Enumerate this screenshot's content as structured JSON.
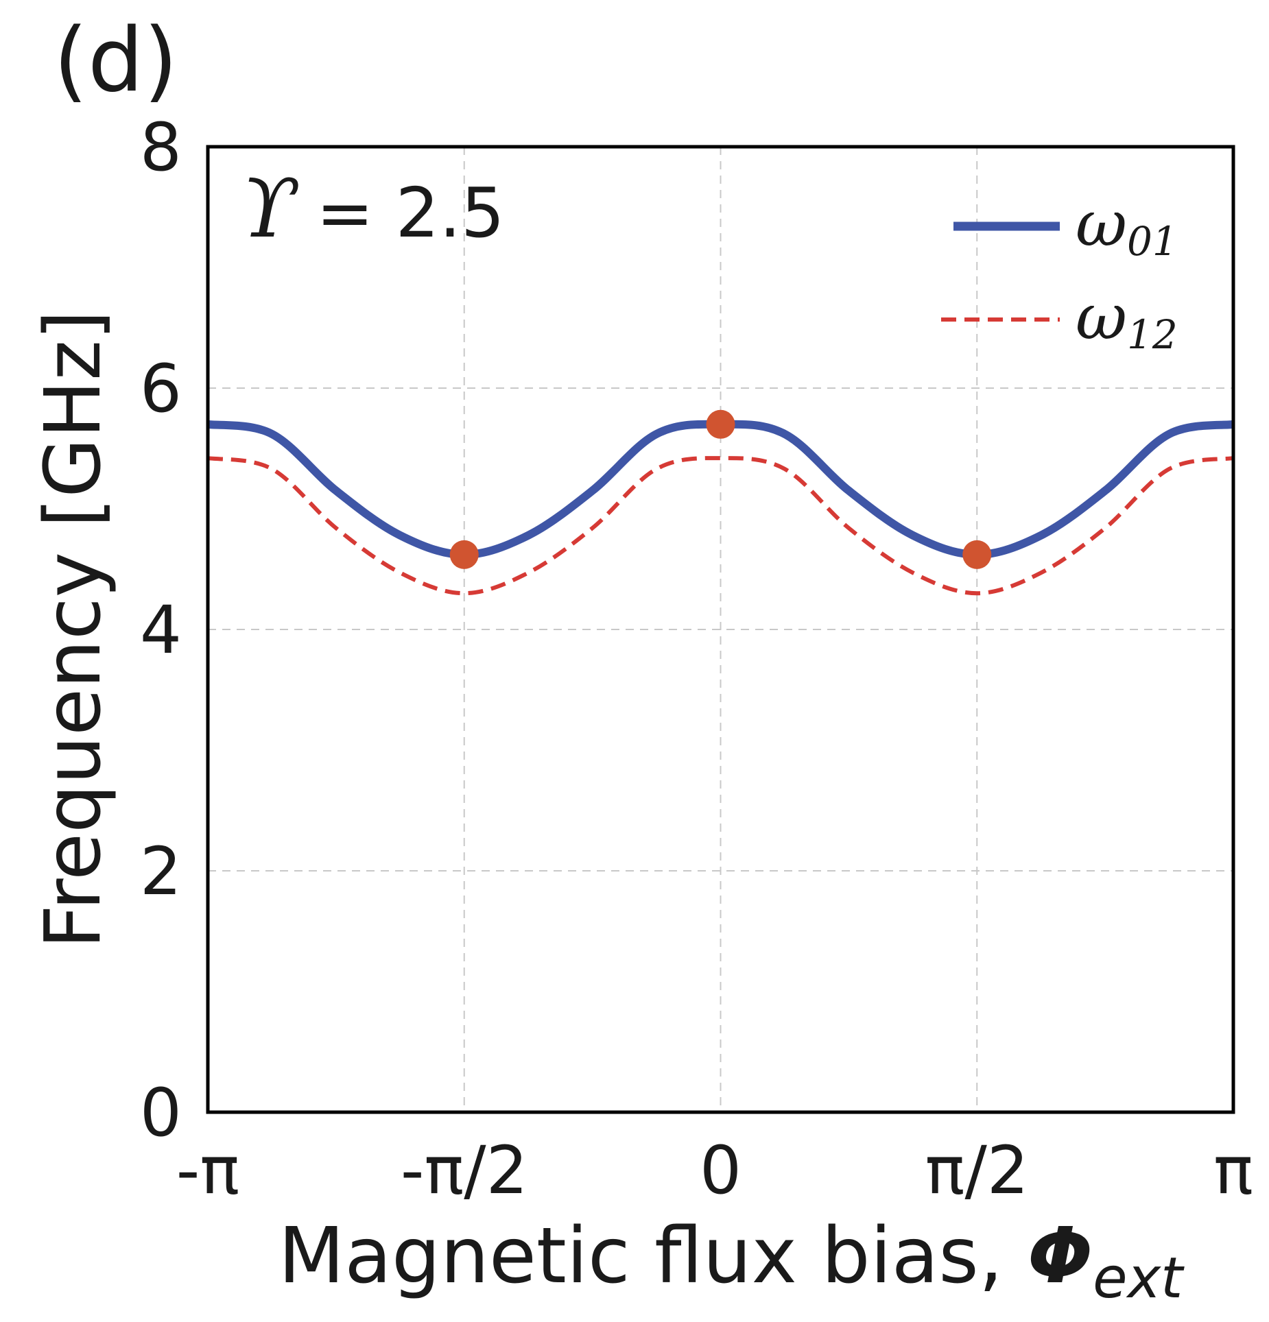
{
  "panel_label": "(d)",
  "annotation": {
    "symbol": "ϒ",
    "text": "= 2.5"
  },
  "chart_data": {
    "type": "line",
    "xlabel": "Magnetic flux bias, ",
    "xlabel_symbol": "Φ",
    "xlabel_subscript": "ext",
    "ylabel": "Frequency [GHz]",
    "xlim": [
      -3.14159,
      3.14159
    ],
    "ylim": [
      0,
      8
    ],
    "x_ticks": [
      {
        "value": -3.14159,
        "label": "-π"
      },
      {
        "value": -1.5708,
        "label": "-π/2"
      },
      {
        "value": 0,
        "label": "0"
      },
      {
        "value": 1.5708,
        "label": "π/2"
      },
      {
        "value": 3.14159,
        "label": "π"
      }
    ],
    "y_ticks": [
      {
        "value": 0,
        "label": "0"
      },
      {
        "value": 2,
        "label": "2"
      },
      {
        "value": 4,
        "label": "4"
      },
      {
        "value": 6,
        "label": "6"
      },
      {
        "value": 8,
        "label": "8"
      }
    ],
    "grid": true,
    "legend": "top-right",
    "series": [
      {
        "name_symbol": "ω",
        "name_subscript": "01",
        "style": "solid",
        "color": "#3f56a6",
        "x": [
          -3.1416,
          -2.7489,
          -2.3562,
          -1.9635,
          -1.5708,
          -1.1781,
          -0.7854,
          -0.3927,
          0,
          0.3927,
          0.7854,
          1.1781,
          1.5708,
          1.9635,
          2.3562,
          2.7489,
          3.1416
        ],
        "y": [
          5.7,
          5.62,
          5.15,
          4.78,
          4.62,
          4.78,
          5.15,
          5.62,
          5.7,
          5.62,
          5.15,
          4.78,
          4.62,
          4.78,
          5.15,
          5.62,
          5.7
        ]
      },
      {
        "name_symbol": "ω",
        "name_subscript": "12",
        "style": "dashed",
        "color": "#d63a35",
        "x": [
          -3.1416,
          -2.7489,
          -2.3562,
          -1.9635,
          -1.5708,
          -1.1781,
          -0.7854,
          -0.3927,
          0,
          0.3927,
          0.7854,
          1.1781,
          1.5708,
          1.9635,
          2.3562,
          2.7489,
          3.1416
        ],
        "y": [
          5.42,
          5.33,
          4.84,
          4.47,
          4.3,
          4.47,
          4.84,
          5.33,
          5.42,
          5.33,
          4.84,
          4.47,
          4.3,
          4.47,
          4.84,
          5.33,
          5.42
        ]
      }
    ],
    "markers": {
      "color": "#d05430",
      "points": [
        {
          "x": -1.5708,
          "y": 4.62
        },
        {
          "x": 0,
          "y": 5.7
        },
        {
          "x": 1.5708,
          "y": 4.62
        }
      ]
    }
  }
}
